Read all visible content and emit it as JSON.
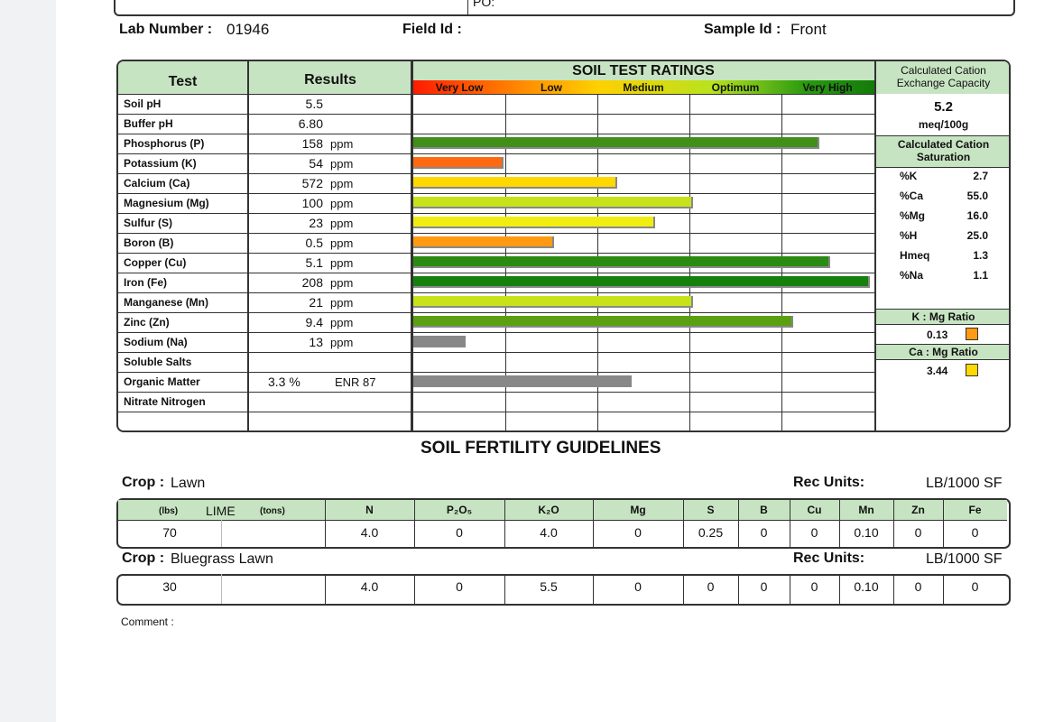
{
  "top": {
    "po_label": "PO:"
  },
  "lab": {
    "lab_number_label": "Lab Number :",
    "lab_number": "01946",
    "field_id_label": "Field Id :",
    "sample_id_label": "Sample Id :",
    "sample_id": "Front"
  },
  "table": {
    "test_header": "Test",
    "results_header": "Results",
    "ratings_title": "SOIL TEST RATINGS",
    "rating_levels": [
      {
        "label": "Very Low",
        "color": "#ff2a00"
      },
      {
        "label": "Low",
        "color": "#ff8c00"
      },
      {
        "label": "Medium",
        "color": "#ffd800"
      },
      {
        "label": "Optimum",
        "color": "#b3df1f"
      },
      {
        "label": "Very High",
        "color": "#1d8a10"
      }
    ],
    "rows": [
      {
        "test": "Soil pH",
        "value": "5.5",
        "unit": "",
        "rating": null,
        "color": ""
      },
      {
        "test": "Buffer pH",
        "value": "6.80",
        "unit": "",
        "rating": null,
        "color": ""
      },
      {
        "test": "Phosphorus (P)",
        "value": "158",
        "unit": "ppm",
        "rating": 0.882,
        "color": "#3f8f18"
      },
      {
        "test": "Potassium (K)",
        "value": "54",
        "unit": "ppm",
        "rating": 0.196,
        "color": "#ff6a10"
      },
      {
        "test": "Calcium (Ca)",
        "value": "572",
        "unit": "ppm",
        "rating": 0.443,
        "color": "#ffd800"
      },
      {
        "test": "Magnesium (Mg)",
        "value": "100",
        "unit": "ppm",
        "rating": 0.608,
        "color": "#c8e21a"
      },
      {
        "test": "Sulfur (S)",
        "value": "23",
        "unit": "ppm",
        "rating": 0.525,
        "color": "#f0ee10"
      },
      {
        "test": "Boron (B)",
        "value": "0.5",
        "unit": "ppm",
        "rating": 0.306,
        "color": "#ff9a12"
      },
      {
        "test": "Copper (Cu)",
        "value": "5.1",
        "unit": "ppm",
        "rating": 0.906,
        "color": "#2a8a12"
      },
      {
        "test": "Iron (Fe)",
        "value": "208",
        "unit": "ppm",
        "rating": 0.992,
        "color": "#15800c"
      },
      {
        "test": "Manganese (Mn)",
        "value": "21",
        "unit": "ppm",
        "rating": 0.608,
        "color": "#c8e21a"
      },
      {
        "test": "Zinc (Zn)",
        "value": "9.4",
        "unit": "ppm",
        "rating": 0.826,
        "color": "#5aa012"
      },
      {
        "test": "Sodium (Na)",
        "value": "13",
        "unit": "ppm",
        "rating": 0.114,
        "color": "#888888"
      },
      {
        "test": "Soluble Salts",
        "value": "",
        "unit": "",
        "rating": null,
        "color": ""
      },
      {
        "test": "Organic Matter",
        "value": "3.3 %",
        "unit": "ENR 87",
        "rating": 0.474,
        "color": "#888888"
      },
      {
        "test": "Nitrate Nitrogen",
        "value": "",
        "unit": "",
        "rating": null,
        "color": ""
      }
    ],
    "cec": {
      "title": "Calculated Cation Exchange Capacity",
      "value": "5.2",
      "unit": "meq/100g",
      "saturation_title": "Calculated Cation Saturation",
      "saturation": [
        {
          "label": "%K",
          "value": "2.7"
        },
        {
          "label": "%Ca",
          "value": "55.0"
        },
        {
          "label": "%Mg",
          "value": "16.0"
        },
        {
          "label": "%H",
          "value": "25.0"
        },
        {
          "label": "Hmeq",
          "value": "1.3"
        },
        {
          "label": "%Na",
          "value": "1.1"
        }
      ],
      "k_mg_label": "K : Mg Ratio",
      "k_mg_value": "0.13",
      "k_mg_color": "#ff9a12",
      "ca_mg_label": "Ca : Mg Ratio",
      "ca_mg_value": "3.44",
      "ca_mg_color": "#ffd800"
    }
  },
  "guidelines": {
    "title": "SOIL FERTILITY GUIDELINES",
    "crop_label": "Crop :",
    "rec_units_label": "Rec Units:",
    "header": {
      "lbs": "(lbs)",
      "lime": "LIME",
      "tons": "(tons)",
      "n": "N",
      "p": "P₂O₅",
      "k": "K₂O",
      "mg": "Mg",
      "s": "S",
      "b": "B",
      "cu": "Cu",
      "mn": "Mn",
      "zn": "Zn",
      "fe": "Fe"
    },
    "crops": [
      {
        "name": "Lawn",
        "rec_units": "LB/1000 SF",
        "lime_lbs": "70",
        "lime_tons": "",
        "n": "4.0",
        "p": "0",
        "k": "4.0",
        "mg": "0",
        "s": "0.25",
        "b": "0",
        "cu": "0",
        "mn": "0.10",
        "zn": "0",
        "fe": "0"
      },
      {
        "name": "Bluegrass Lawn",
        "rec_units": "LB/1000 SF",
        "lime_lbs": "30",
        "lime_tons": "",
        "n": "4.0",
        "p": "0",
        "k": "5.5",
        "mg": "0",
        "s": "0",
        "b": "0",
        "cu": "0",
        "mn": "0.10",
        "zn": "0",
        "fe": "0"
      }
    ]
  },
  "comment_label": "Comment :"
}
